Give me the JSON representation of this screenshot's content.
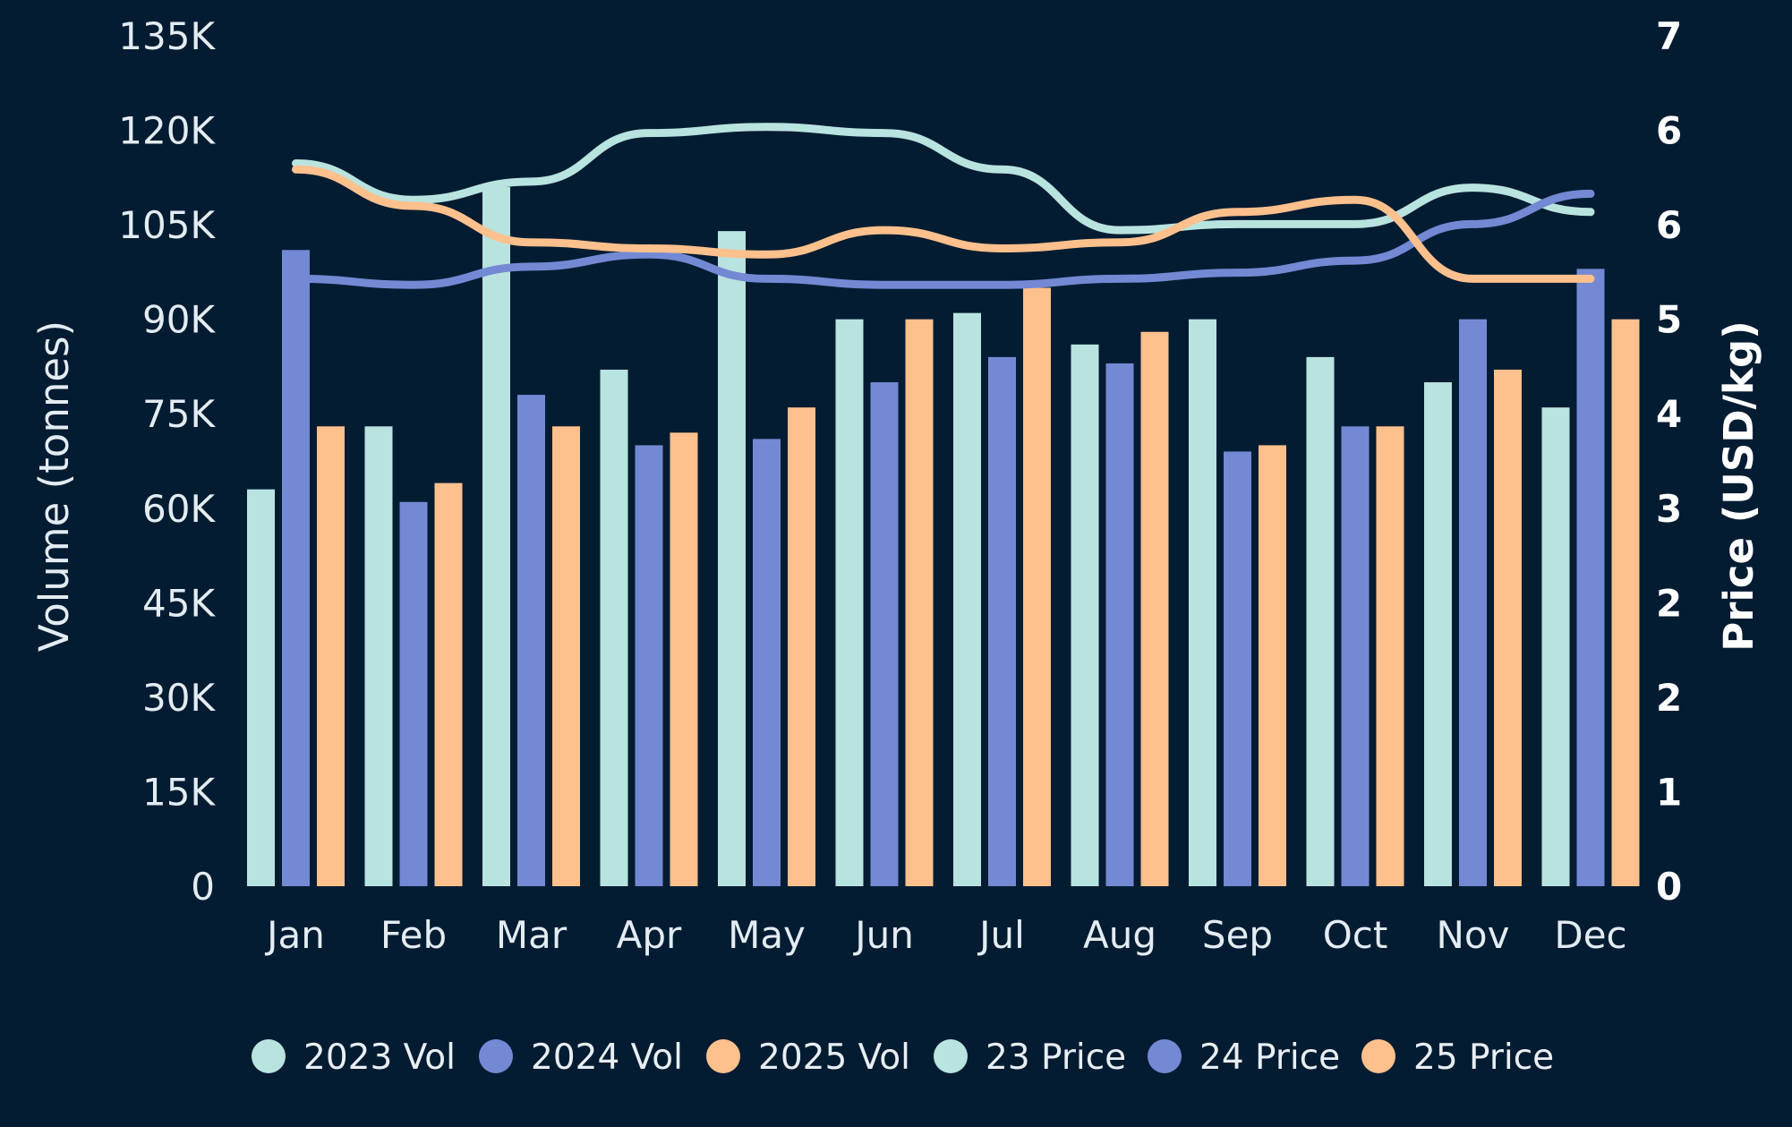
{
  "chart_data": {
    "type": "bar",
    "categories": [
      "Jan",
      "Feb",
      "Mar",
      "Apr",
      "May",
      "Jun",
      "Jul",
      "Aug",
      "Sep",
      "Oct",
      "Nov",
      "Dec"
    ],
    "bar_series": [
      {
        "name": "2023 Vol",
        "color": "#b9e3df",
        "values": [
          63000,
          73000,
          111000,
          82000,
          104000,
          90000,
          91000,
          86000,
          90000,
          84000,
          80000,
          76000
        ]
      },
      {
        "name": "2024 Vol",
        "color": "#7389d4",
        "values": [
          101000,
          61000,
          78000,
          70000,
          71000,
          80000,
          84000,
          83000,
          69000,
          73000,
          90000,
          98000
        ]
      },
      {
        "name": "2025 Vol",
        "color": "#fec08c",
        "values": [
          73000,
          64000,
          73000,
          72000,
          76000,
          90000,
          95000,
          88000,
          70000,
          73000,
          82000,
          90000
        ]
      }
    ],
    "line_series": [
      {
        "name": "23 Price",
        "color": "#b9e3df",
        "values": [
          5.95,
          5.65,
          5.8,
          6.2,
          6.25,
          6.2,
          5.9,
          5.4,
          5.45,
          5.45,
          5.75,
          5.55
        ]
      },
      {
        "name": "24 Price",
        "color": "#7389d4",
        "values": [
          5.0,
          4.95,
          5.1,
          5.2,
          5.0,
          4.95,
          4.95,
          5.0,
          5.05,
          5.15,
          5.45,
          5.7
        ]
      },
      {
        "name": "25 Price",
        "color": "#fec08c",
        "values": [
          5.9,
          5.6,
          5.3,
          5.25,
          5.2,
          5.4,
          5.25,
          5.3,
          5.55,
          5.65,
          5.0,
          5.0
        ]
      }
    ],
    "y_left": {
      "label": "Volume (tonnes)",
      "range": [
        0,
        135000
      ],
      "ticks": [
        0,
        15000,
        30000,
        45000,
        60000,
        75000,
        90000,
        105000,
        120000,
        135000
      ],
      "tick_labels": [
        "0",
        "15K",
        "30K",
        "45K",
        "60K",
        "75K",
        "90K",
        "105K",
        "120K",
        "135K"
      ]
    },
    "y_right": {
      "label": "Price (USD/kg)",
      "range": [
        0,
        7
      ],
      "tick_labels": [
        "0",
        "1",
        "2",
        "2",
        "3",
        "4",
        "5",
        "6",
        "6",
        "7"
      ]
    },
    "legend": {
      "position": "bottom",
      "items": [
        {
          "label": "2023 Vol",
          "color": "#b9e3df"
        },
        {
          "label": "2024 Vol",
          "color": "#7389d4"
        },
        {
          "label": "2025 Vol",
          "color": "#fec08c"
        },
        {
          "label": "23 Price",
          "color": "#b9e3df"
        },
        {
          "label": "24 Price",
          "color": "#7389d4"
        },
        {
          "label": "25 Price",
          "color": "#fec08c"
        }
      ]
    },
    "grid": false
  }
}
